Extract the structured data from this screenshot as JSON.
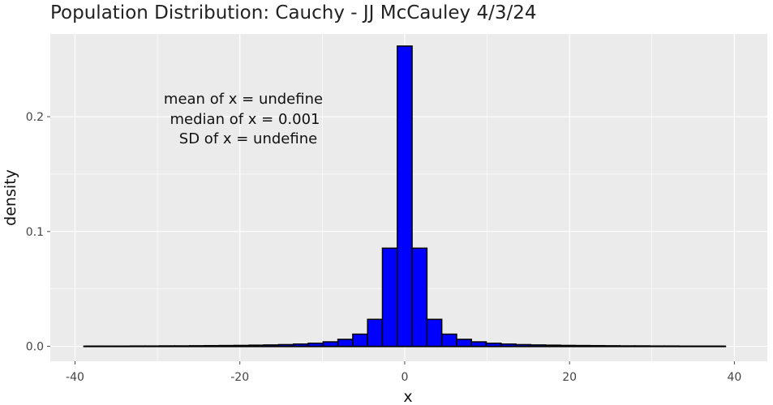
{
  "chart_data": {
    "type": "bar",
    "title": "Population Distribution: Cauchy -  JJ McCauley 4/3/24",
    "xlabel": "x",
    "ylabel": "density",
    "xlim": [
      -43,
      44
    ],
    "ylim": [
      -0.013,
      0.272
    ],
    "x_ticks": [
      -40,
      -20,
      0,
      20,
      40
    ],
    "x_tick_labels": [
      "-40",
      "-20",
      "0",
      "20",
      "40"
    ],
    "y_ticks": [
      0.0,
      0.1,
      0.2
    ],
    "y_tick_labels": [
      "0.0",
      "0.1",
      "0.2"
    ],
    "grid": true,
    "bar_color": "#0000ff",
    "bar_edge_color": "#000000",
    "panel_color": "#ebebeb",
    "grid_color": "#ffffff",
    "bin_width": 1.8,
    "bins": {
      "centers": [
        -37.8,
        -36.0,
        -34.2,
        -32.4,
        -30.6,
        -28.8,
        -27.0,
        -25.2,
        -23.4,
        -21.6,
        -19.8,
        -18.0,
        -16.2,
        -14.4,
        -12.6,
        -10.8,
        -9.0,
        -7.2,
        -5.4,
        -3.6,
        -1.8,
        0.0,
        1.8,
        3.6,
        5.4,
        7.2,
        9.0,
        10.8,
        12.6,
        14.4,
        16.2,
        18.0,
        19.8,
        21.6,
        23.4,
        25.2,
        27.0,
        28.8,
        30.6,
        32.4,
        34.2,
        36.0,
        37.8
      ],
      "density": [
        0.0002,
        0.0002,
        0.0002,
        0.0003,
        0.0003,
        0.0004,
        0.0004,
        0.0005,
        0.0006,
        0.0007,
        0.0008,
        0.001,
        0.0012,
        0.0015,
        0.002,
        0.0027,
        0.0039,
        0.0061,
        0.0106,
        0.0235,
        0.0855,
        0.2615,
        0.0855,
        0.0235,
        0.0106,
        0.0061,
        0.0039,
        0.0027,
        0.002,
        0.0015,
        0.0012,
        0.001,
        0.0008,
        0.0007,
        0.0006,
        0.0005,
        0.0004,
        0.0004,
        0.0003,
        0.0003,
        0.0002,
        0.0002,
        0.0002
      ]
    },
    "baseline_range": [
      -39,
      39
    ],
    "annotations": [
      "mean of x = undefine",
      "median of x = 0.001",
      "SD of x = undefine"
    ]
  }
}
